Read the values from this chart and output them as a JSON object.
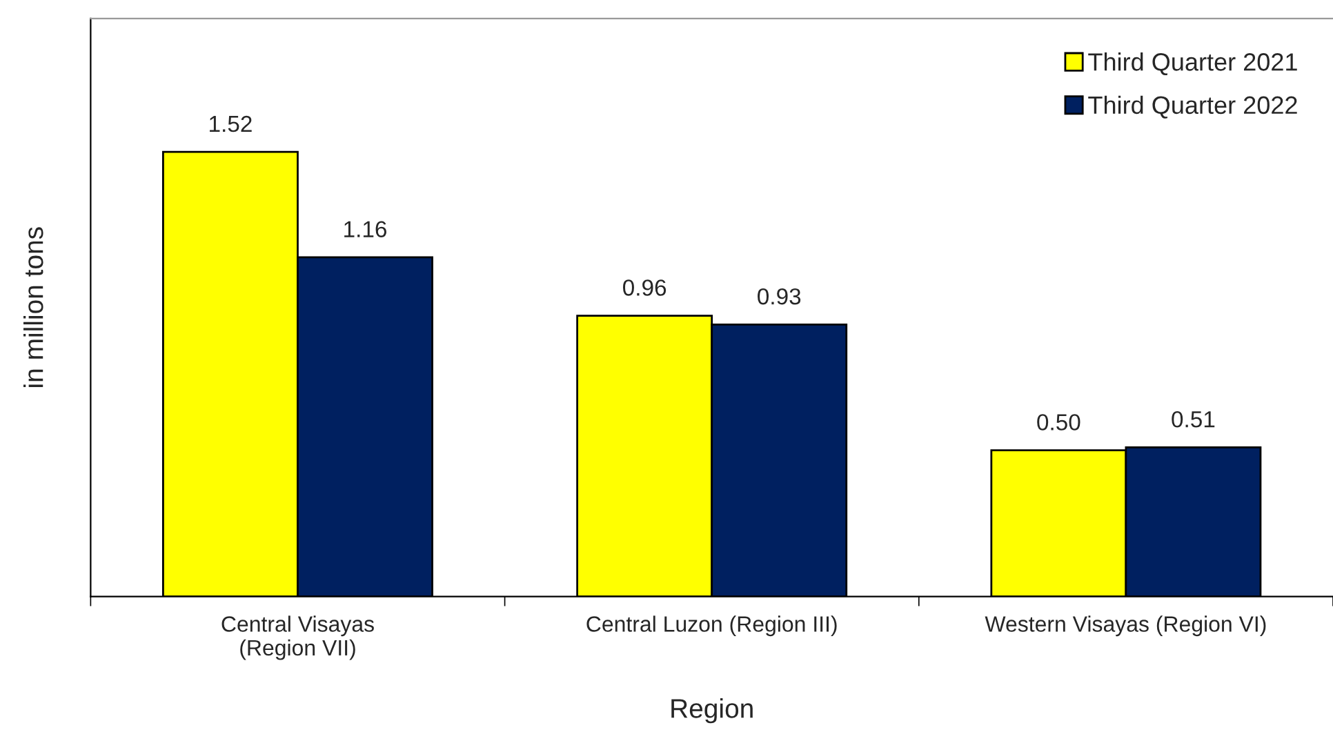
{
  "chart_data": {
    "type": "bar",
    "xlabel": "Region",
    "ylabel": "in million tons",
    "categories": [
      "Central Visayas\n(Region VII)",
      "Central Luzon (Region III)",
      "Western Visayas (Region VI)"
    ],
    "series": [
      {
        "name": "Third Quarter 2021",
        "color": "#ffff00",
        "values": [
          1.52,
          0.96,
          0.5
        ],
        "value_labels": [
          "1.52",
          "0.96",
          "0.50"
        ]
      },
      {
        "name": "Third Quarter 2022",
        "color": "#002060",
        "values": [
          1.16,
          0.93,
          0.51
        ],
        "value_labels": [
          "1.16",
          "0.93",
          "0.51"
        ]
      }
    ],
    "legend": "top right",
    "grid": false,
    "tick_labels": "x"
  }
}
